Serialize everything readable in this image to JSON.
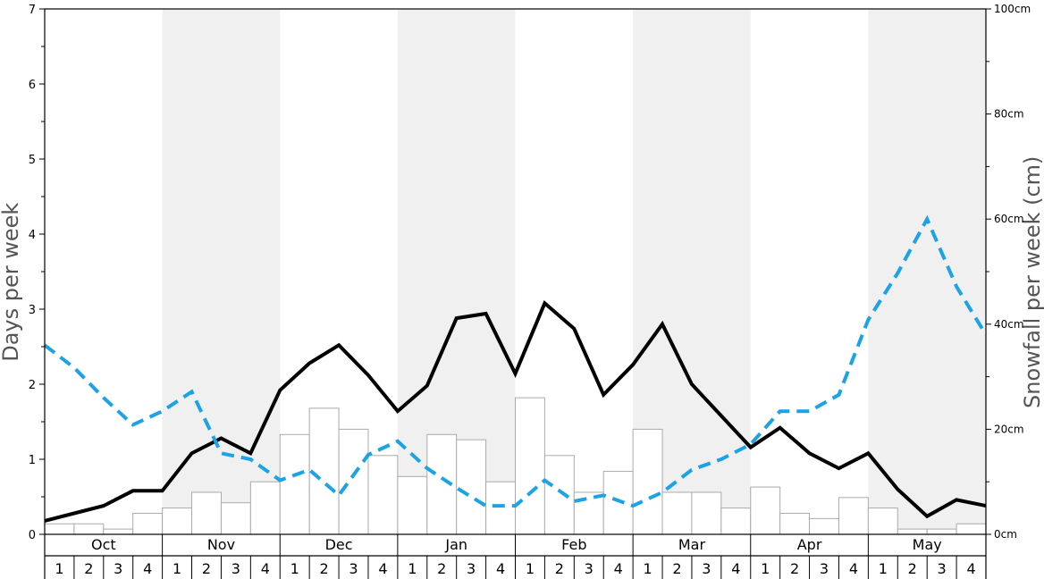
{
  "chart_data": {
    "type": "bar",
    "title": "",
    "months": [
      "Oct",
      "Nov",
      "Dec",
      "Jan",
      "Feb",
      "Mar",
      "Apr",
      "May"
    ],
    "week_labels": [
      "1",
      "2",
      "3",
      "4"
    ],
    "shaded_months": [
      "Nov",
      "Jan",
      "Mar",
      "May"
    ],
    "y_left": {
      "label": "Days per week",
      "range": [
        0,
        7
      ],
      "ticks": [
        "0",
        "1",
        "2",
        "3",
        "4",
        "5",
        "6",
        "7"
      ]
    },
    "y_right": {
      "label": "Snowfall per week (cm)",
      "range": [
        0,
        100
      ],
      "ticks": [
        "0cm",
        "20cm",
        "40cm",
        "60cm",
        "80cm",
        "100cm"
      ]
    },
    "series": [
      {
        "kind": "bar",
        "axis": "right",
        "color": "#ffffff",
        "stroke": "#aaaaaa",
        "values": [
          2,
          2,
          1,
          4,
          5,
          8,
          6,
          10,
          19,
          24,
          20,
          15,
          11,
          19,
          18,
          10,
          26,
          15,
          8,
          12,
          20,
          8,
          8,
          5,
          9,
          4,
          3,
          7,
          5,
          1,
          1,
          2
        ]
      },
      {
        "kind": "line",
        "axis": "left",
        "color": "#000000",
        "dashed": false,
        "values": [
          0.18,
          0.28,
          0.38,
          0.58,
          0.58,
          1.08,
          1.28,
          1.08,
          1.92,
          2.28,
          2.52,
          2.12,
          1.64,
          1.98,
          2.88,
          2.94,
          2.14,
          3.08,
          2.74,
          1.86,
          2.26,
          2.8,
          2.0,
          1.58,
          1.16,
          1.42,
          1.08,
          0.88,
          1.08,
          0.6,
          0.24,
          0.46,
          0.38
        ]
      },
      {
        "kind": "line",
        "axis": "left",
        "color": "#1ca3e6",
        "dashed": true,
        "values": [
          2.52,
          2.22,
          1.82,
          1.46,
          1.64,
          1.9,
          1.08,
          1.0,
          0.72,
          0.86,
          0.52,
          1.06,
          1.24,
          0.88,
          0.62,
          0.38,
          0.38,
          0.72,
          0.44,
          0.52,
          0.38,
          0.56,
          0.86,
          1.0,
          1.2,
          1.64,
          1.64,
          1.86,
          2.86,
          3.48,
          4.2,
          3.3,
          2.66
        ]
      }
    ]
  }
}
